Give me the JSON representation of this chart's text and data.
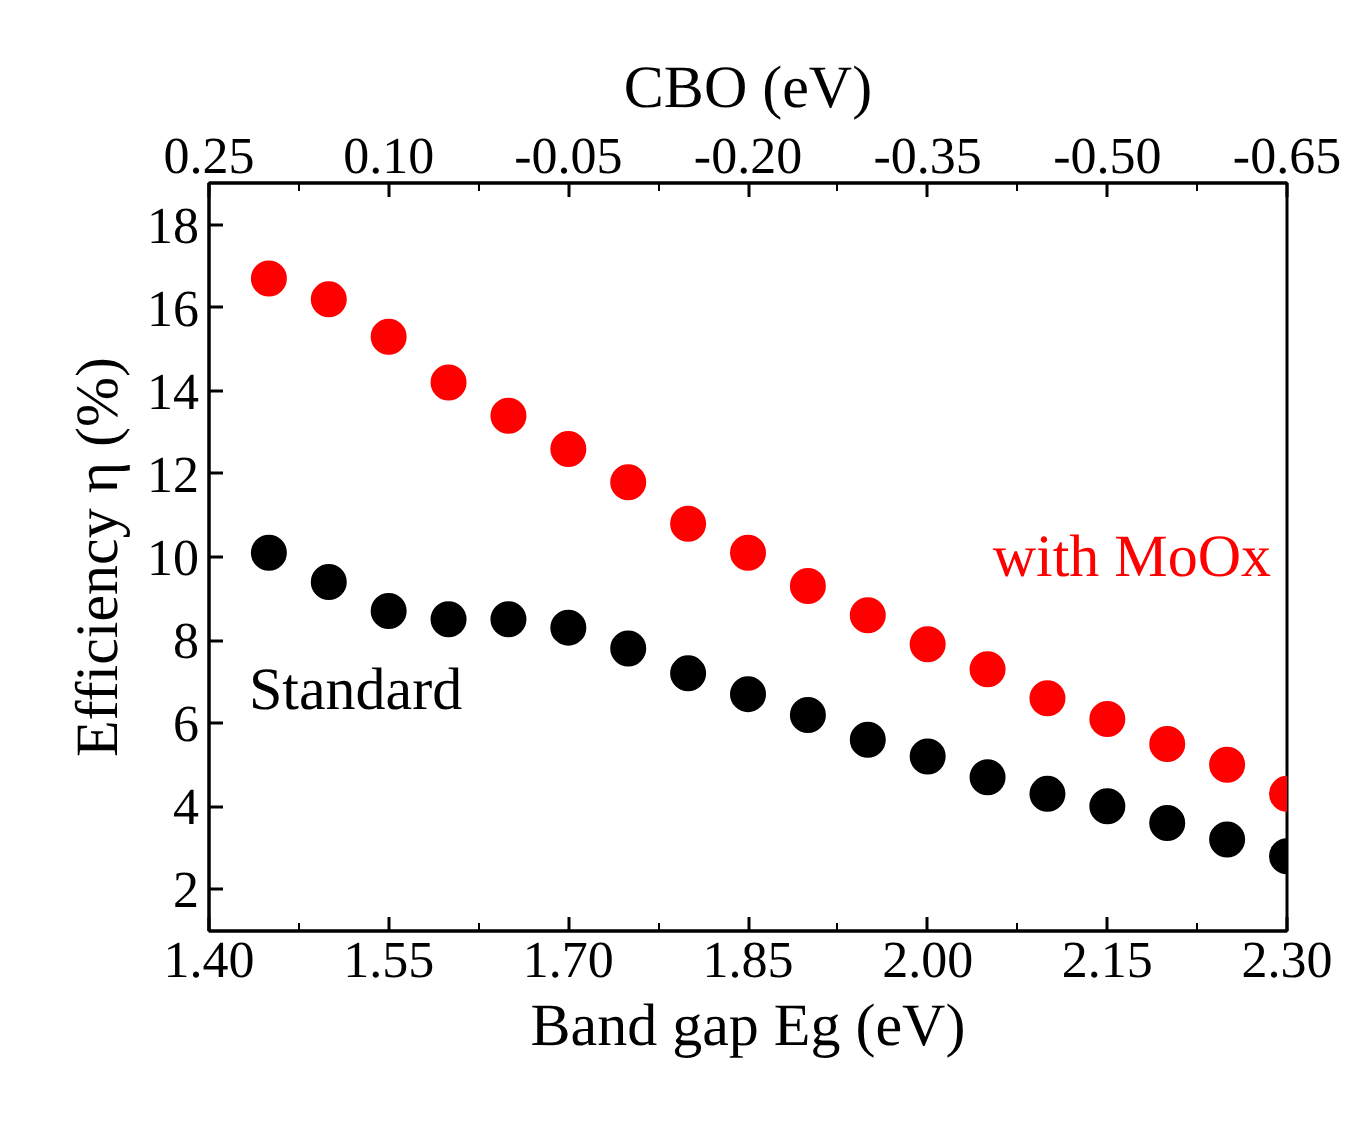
{
  "chart_data": {
    "type": "scatter",
    "xlabel": "Band gap Eg (eV)",
    "ylabel": "Efficiency η (%)",
    "x2label": "CBO (eV)",
    "x": [
      1.45,
      1.5,
      1.55,
      1.6,
      1.65,
      1.7,
      1.75,
      1.8,
      1.85,
      1.9,
      1.95,
      2.0,
      2.05,
      2.1,
      2.15,
      2.2,
      2.25,
      2.3
    ],
    "series": [
      {
        "name": "with MoOx",
        "color": "#ff0000",
        "values": [
          16.7,
          16.2,
          15.3,
          14.2,
          13.4,
          12.6,
          11.8,
          10.8,
          10.1,
          9.3,
          8.6,
          7.9,
          7.3,
          6.6,
          6.1,
          5.5,
          5.0,
          4.3
        ]
      },
      {
        "name": "Standard",
        "color": "#000000",
        "values": [
          10.1,
          9.4,
          8.7,
          8.5,
          8.5,
          8.3,
          7.8,
          7.2,
          6.7,
          6.2,
          5.6,
          5.2,
          4.7,
          4.3,
          4.0,
          3.6,
          3.2,
          2.8
        ]
      }
    ],
    "marker": "circle",
    "grid": false,
    "xlim": [
      1.4,
      2.3
    ],
    "xticks": [
      {
        "value": 1.4,
        "label": "1.40"
      },
      {
        "value": 1.475,
        "label": null
      },
      {
        "value": 1.55,
        "label": "1.55"
      },
      {
        "value": 1.625,
        "label": null
      },
      {
        "value": 1.7,
        "label": "1.70"
      },
      {
        "value": 1.775,
        "label": null
      },
      {
        "value": 1.85,
        "label": "1.85"
      },
      {
        "value": 1.925,
        "label": null
      },
      {
        "value": 2.0,
        "label": "2.00"
      },
      {
        "value": 2.075,
        "label": null
      },
      {
        "value": 2.15,
        "label": "2.15"
      },
      {
        "value": 2.225,
        "label": null
      },
      {
        "value": 2.3,
        "label": "2.30"
      }
    ],
    "x2lim": [
      0.25,
      -0.65
    ],
    "x2ticks": [
      {
        "value": 0.25,
        "label": "0.25"
      },
      {
        "value": 0.175,
        "label": null
      },
      {
        "value": 0.1,
        "label": "0.10"
      },
      {
        "value": 0.025,
        "label": null
      },
      {
        "value": -0.05,
        "label": "-0.05"
      },
      {
        "value": -0.125,
        "label": null
      },
      {
        "value": -0.2,
        "label": "-0.20"
      },
      {
        "value": -0.275,
        "label": null
      },
      {
        "value": -0.35,
        "label": "-0.35"
      },
      {
        "value": -0.425,
        "label": null
      },
      {
        "value": -0.5,
        "label": "-0.50"
      },
      {
        "value": -0.575,
        "label": null
      },
      {
        "value": -0.65,
        "label": "-0.65"
      }
    ],
    "ylim": [
      1,
      19
    ],
    "yticks": [
      2,
      4,
      6,
      8,
      10,
      12,
      14,
      16,
      18
    ]
  }
}
